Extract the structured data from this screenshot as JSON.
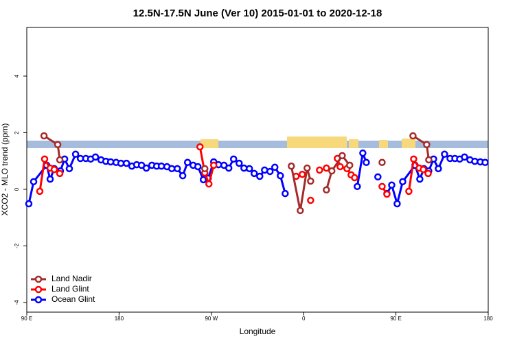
{
  "chart_data": {
    "type": "line",
    "title": "12.5N-17.5N June (Ver 10)   2015-01-01 to 2020-12-18",
    "x_label": "Longitude",
    "y_label": "XCO2 - MLO trend (ppm)",
    "xlim": [
      90,
      540
    ],
    "ylim": [
      -4.34,
      5.72
    ],
    "xticks": [
      {
        "value": 90,
        "label": "90 E"
      },
      180,
      {
        "value": 270,
        "label": "90 W"
      },
      {
        "value": 360,
        "label": "0"
      },
      {
        "value": 450,
        "label": "90 E"
      },
      {
        "value": 540,
        "label": "180"
      }
    ],
    "yticks": [
      -4,
      -2,
      0,
      2,
      4
    ],
    "legend": "bottom-left",
    "series": [
      {
        "name": "Land Nadir",
        "color": "#a52a2a",
        "x": [
          106.8,
          120.2,
          122.2,
          null,
          263.6,
          null,
          348.0,
          356.7,
          363.4,
          366.8,
          null,
          382.2,
          387.5,
          397.6,
          404.9,
          null,
          436.5,
          null,
          466.6,
          480.0,
          482.0
        ],
        "values": [
          1.89,
          1.58,
          1.04,
          null,
          0.73,
          null,
          0.82,
          -0.75,
          0.75,
          0.29,
          null,
          -0.02,
          0.65,
          1.19,
          0.85,
          null,
          0.95,
          null,
          1.89,
          1.58,
          1.04
        ]
      },
      {
        "name": "Land Glint",
        "color": "#ff0000",
        "x": [
          102.7,
          107.4,
          112.8,
          116.8,
          122.2,
          null,
          258.9,
          263.6,
          267.6,
          272.3,
          null,
          352.7,
          358.7,
          null,
          366.8,
          null,
          375.5,
          null,
          382.2,
          null,
          392.9,
          395.6,
          402.3,
          406.3,
          409.7,
          null,
          436.5,
          441.2,
          null,
          462.6,
          467.3,
          472.7,
          476.7,
          481.4
        ],
        "values": [
          -0.07,
          1.07,
          0.75,
          0.7,
          0.56,
          null,
          1.5,
          0.58,
          0.19,
          0.85,
          null,
          0.46,
          0.53,
          null,
          -0.39,
          null,
          0.68,
          null,
          0.75,
          null,
          1.09,
          0.8,
          0.73,
          0.51,
          0.41,
          null,
          0.1,
          -0.17,
          null,
          -0.07,
          1.07,
          0.75,
          0.7,
          0.56
        ]
      },
      {
        "name": "Ocean Glint",
        "color": "#0000ff",
        "x": [
          92.0,
          96.7,
          109.4,
          112.8,
          116.8,
          122.8,
          126.9,
          131.5,
          137.6,
          142.3,
          147.6,
          152.3,
          157.0,
          162.4,
          167.1,
          171.8,
          177.1,
          181.8,
          187.2,
          192.5,
          197.2,
          201.9,
          206.6,
          212.0,
          216.7,
          221.3,
          226.7,
          231.4,
          236.8,
          242.1,
          246.8,
          252.2,
          256.9,
          262.2,
          266.9,
          272.3,
          277.0,
          282.3,
          287.0,
          291.7,
          297.1,
          301.8,
          307.1,
          311.8,
          317.2,
          321.9,
          327.2,
          331.9,
          337.3,
          342.0,
          null,
          412.3,
          417.7,
          421.1,
          null,
          432.4,
          null,
          441.2,
          445.9,
          451.2,
          456.6,
          468.6,
          473.3,
          477.3,
          482.0,
          486.7,
          491.4,
          497.4,
          502.8,
          507.5,
          512.2,
          516.9,
          522.2,
          526.9,
          532.3,
          537.0
        ],
        "values": [
          -0.51,
          0.27,
          0.85,
          0.36,
          0.73,
          0.65,
          1.07,
          0.73,
          1.24,
          1.09,
          1.09,
          1.07,
          1.14,
          1.04,
          0.99,
          0.97,
          0.95,
          0.92,
          0.92,
          0.82,
          0.87,
          0.85,
          0.75,
          0.85,
          0.82,
          0.82,
          0.8,
          0.73,
          0.73,
          0.48,
          0.95,
          0.85,
          0.8,
          0.34,
          0.39,
          0.97,
          0.87,
          0.85,
          0.75,
          1.07,
          0.92,
          0.75,
          0.73,
          0.56,
          0.46,
          0.68,
          0.63,
          0.78,
          0.48,
          -0.15,
          null,
          0.1,
          1.28,
          0.95,
          null,
          0.44,
          null,
          -0.15,
          0.15,
          -0.51,
          0.27,
          0.85,
          0.36,
          0.73,
          0.65,
          1.07,
          0.73,
          1.24,
          1.09,
          1.09,
          1.07,
          1.14,
          1.04,
          0.99,
          0.97,
          0.95
        ]
      }
    ]
  }
}
